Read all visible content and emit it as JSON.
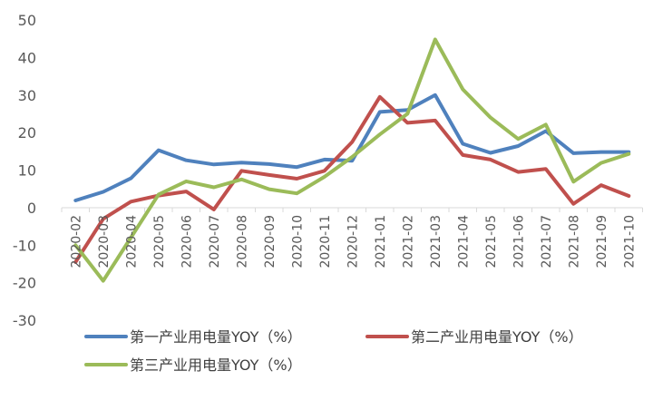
{
  "chart_data": {
    "type": "line",
    "title": "",
    "xlabel": "",
    "ylabel": "",
    "ylim": [
      -30,
      50
    ],
    "yticks": [
      50,
      40,
      30,
      20,
      10,
      0,
      -10,
      -20,
      -30
    ],
    "categories": [
      "2020-02",
      "2020-03",
      "2020-04",
      "2020-05",
      "2020-06",
      "2020-07",
      "2020-08",
      "2020-09",
      "2020-10",
      "2020-11",
      "2020-12",
      "2021-01",
      "2021-02",
      "2021-03",
      "2021-04",
      "2021-05",
      "2021-06",
      "2021-07",
      "2021-08",
      "2021-09",
      "2021-10"
    ],
    "grid": false,
    "legend_position": "bottom",
    "series": [
      {
        "name": "第一产业用电量YOY（%）",
        "color": "#4f81bd",
        "values": [
          1.9,
          4.2,
          7.8,
          15.3,
          12.6,
          11.5,
          12.0,
          11.6,
          10.8,
          12.8,
          12.5,
          25.5,
          26.0,
          30.0,
          17.0,
          14.6,
          16.4,
          20.4,
          14.5,
          14.8,
          14.8
        ]
      },
      {
        "name": "第二产业用电量YOY（%）",
        "color": "#c0504d",
        "values": [
          -14.5,
          -3.0,
          1.6,
          3.2,
          4.3,
          -0.5,
          9.8,
          8.7,
          7.7,
          9.8,
          17.5,
          29.5,
          22.6,
          23.2,
          14.0,
          12.8,
          9.5,
          10.3,
          1.0,
          6.0,
          3.1
        ]
      },
      {
        "name": "第三产业用电量YOY（%）",
        "color": "#9bbb59",
        "values": [
          -10.0,
          -19.5,
          -8.0,
          3.5,
          7.0,
          5.4,
          7.5,
          4.9,
          3.8,
          8.2,
          13.5,
          19.5,
          25.0,
          44.8,
          31.5,
          24.0,
          18.3,
          22.1,
          6.9,
          11.9,
          14.3
        ]
      }
    ]
  }
}
